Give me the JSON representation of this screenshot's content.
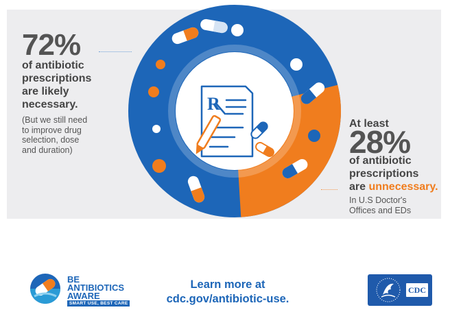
{
  "left_stat": {
    "percent": "72%",
    "line1": "of antibiotic",
    "line2": "prescriptions",
    "line3": "are likely",
    "line4": "necessary.",
    "note1": "(But we still need",
    "note2": "to improve drug",
    "note3": "selection, dose",
    "note4": "and duration)"
  },
  "right_stat": {
    "lead": "At least",
    "percent": "28%",
    "line1": "of antibiotic",
    "line2": "prescriptions",
    "line3_prefix": "are ",
    "line3_emph": "unnecessary.",
    "note1": "In U.S Doctor's",
    "note2": "Offices and EDs"
  },
  "donut": {
    "necessary_fraction": 0.72,
    "unnecessary_fraction": 0.28,
    "colors": {
      "necessary": "#1d66b8",
      "unnecessary": "#f07d1e",
      "background": "#ededef"
    },
    "center_icon": "prescription-icon"
  },
  "footer": {
    "be": "BE",
    "antibiotics": "ANTIBIOTICS",
    "aware": "AWARE",
    "tagline": "SMART USE, BEST CARE",
    "learn1": "Learn more at",
    "learn2": "cdc.gov/antibiotic-use.",
    "cdc": "CDC"
  }
}
